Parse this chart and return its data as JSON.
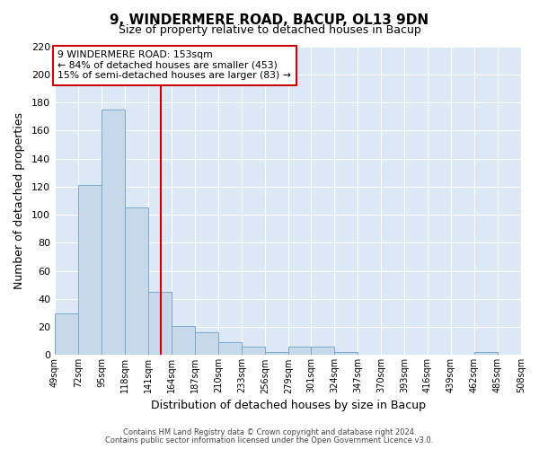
{
  "title1": "9, WINDERMERE ROAD, BACUP, OL13 9DN",
  "title2": "Size of property relative to detached houses in Bacup",
  "xlabel": "Distribution of detached houses by size in Bacup",
  "ylabel": "Number of detached properties",
  "bin_edges": [
    49,
    72,
    95,
    118,
    141,
    164,
    187,
    210,
    233,
    256,
    279,
    301,
    324,
    347,
    370,
    393,
    416,
    439,
    462,
    485,
    508
  ],
  "bar_heights": [
    30,
    121,
    175,
    105,
    45,
    21,
    16,
    9,
    6,
    2,
    6,
    6,
    2,
    0,
    0,
    0,
    0,
    0,
    2,
    0
  ],
  "bar_color": "#c8d8eb",
  "bar_edge_color": "#7aaac9",
  "vline_x": 153,
  "vline_color": "#cc0000",
  "annotation_text": "9 WINDERMERE ROAD: 153sqm\n← 84% of detached houses are smaller (453)\n15% of semi-detached houses are larger (83) →",
  "annotation_box_color": "#ffffff",
  "annotation_box_edge": "#cc0000",
  "ylim": [
    0,
    220
  ],
  "yticks": [
    0,
    20,
    40,
    60,
    80,
    100,
    120,
    140,
    160,
    180,
    200,
    220
  ],
  "plot_bg_color": "#dce8f5",
  "fig_bg_color": "#ffffff",
  "grid_color": "#ffffff",
  "footnote1": "Contains HM Land Registry data © Crown copyright and database right 2024.",
  "footnote2": "Contains public sector information licensed under the Open Government Licence v3.0."
}
